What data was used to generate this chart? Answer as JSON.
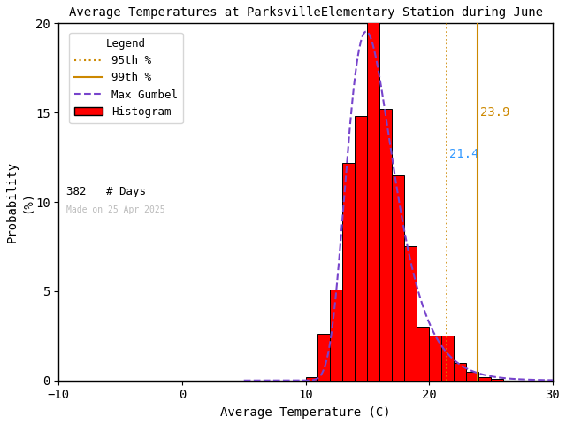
{
  "title": "Average Temperatures at ParksvilleElementary Station during June",
  "xlabel": "Average Temperature (C)",
  "ylabel": "Probability\n(%)",
  "xlim": [
    -10,
    30
  ],
  "ylim": [
    0,
    20
  ],
  "xticks": [
    -10,
    0,
    10,
    20,
    30
  ],
  "yticks": [
    0,
    5,
    10,
    15,
    20
  ],
  "bar_edges": [
    10.0,
    11.0,
    12.0,
    13.0,
    14.0,
    15.0,
    16.0,
    17.0,
    18.0,
    19.0,
    20.0,
    21.0,
    22.0,
    23.0,
    24.0,
    25.0
  ],
  "bar_heights": [
    0.2,
    2.6,
    5.1,
    12.2,
    14.8,
    20.3,
    15.2,
    11.5,
    7.5,
    3.0,
    2.5,
    2.5,
    1.0,
    0.5,
    0.2,
    0.1
  ],
  "bar_color": "#ff0000",
  "bar_edgecolor": "#000000",
  "gumbel_color": "#7744cc",
  "gumbel_linestyle": "--",
  "p95_value": 21.4,
  "p95_color": "#cc8800",
  "p95_linestyle": ":",
  "p99_value": 23.9,
  "p99_color": "#cc8800",
  "p99_linestyle": "-",
  "p95_label_color": "#3399ff",
  "p99_label_color": "#cc8800",
  "n_days": 382,
  "watermark": "Made on 25 Apr 2025",
  "watermark_color": "#bbbbbb",
  "title_fontsize": 10,
  "axis_fontsize": 10,
  "tick_fontsize": 10,
  "legend_fontsize": 9
}
